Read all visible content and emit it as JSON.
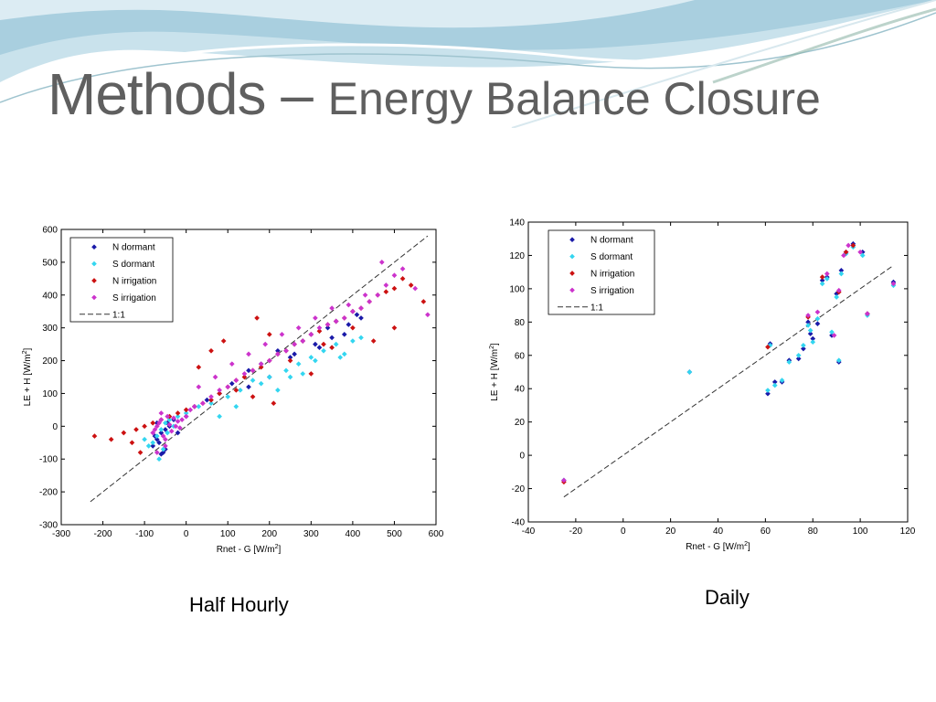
{
  "slide": {
    "title_main": "Methods – ",
    "title_sub": "Energy Balance Closure",
    "captions": [
      "Half Hourly",
      "Daily"
    ]
  },
  "chart_data": [
    {
      "type": "scatter",
      "xlabel": "Rnet - G [W/m",
      "ylabel": "LE + H [W/m",
      "xlim": [
        -300,
        600
      ],
      "ylim": [
        -300,
        600
      ],
      "xticks": [
        -300,
        -200,
        -100,
        0,
        100,
        200,
        300,
        400,
        500,
        600
      ],
      "yticks": [
        -300,
        -200,
        -100,
        0,
        100,
        200,
        300,
        400,
        500,
        600
      ],
      "legend": "top-left",
      "series": [
        {
          "name": "N dormant",
          "color": "#1a1aa8",
          "x": [
            -80,
            -70,
            -60,
            -55,
            -50,
            -45,
            -65,
            -75,
            -40,
            -30,
            -20,
            0,
            20,
            50,
            80,
            110,
            150,
            180,
            220,
            250,
            280,
            300,
            320,
            340,
            360,
            380,
            400,
            410,
            420,
            150,
            200,
            260,
            310,
            350,
            390,
            -60,
            -50,
            -70
          ],
          "y": [
            -60,
            -40,
            -20,
            -80,
            -10,
            10,
            -50,
            -30,
            0,
            20,
            -20,
            30,
            60,
            80,
            100,
            130,
            170,
            190,
            230,
            210,
            260,
            280,
            240,
            300,
            320,
            280,
            350,
            340,
            330,
            120,
            150,
            220,
            250,
            270,
            310,
            -85,
            -70,
            10
          ]
        },
        {
          "name": "S dormant",
          "color": "#33d6f0",
          "x": [
            -80,
            -70,
            -60,
            -55,
            -50,
            -40,
            -30,
            -20,
            0,
            30,
            60,
            100,
            130,
            160,
            200,
            240,
            270,
            300,
            330,
            360,
            380,
            400,
            420,
            180,
            220,
            250,
            350,
            370,
            -100,
            -90,
            -65,
            -45,
            80,
            120,
            280,
            310
          ],
          "y": [
            -50,
            -30,
            -10,
            -70,
            10,
            20,
            0,
            30,
            40,
            60,
            70,
            90,
            110,
            140,
            150,
            170,
            190,
            210,
            230,
            250,
            220,
            260,
            270,
            130,
            110,
            150,
            240,
            210,
            -40,
            -60,
            -100,
            -20,
            30,
            60,
            160,
            200
          ]
        },
        {
          "name": "N irrigation",
          "color": "#cc1111",
          "x": [
            -220,
            -180,
            -150,
            -120,
            -100,
            -80,
            -60,
            -40,
            -20,
            0,
            20,
            40,
            60,
            80,
            100,
            120,
            140,
            160,
            180,
            200,
            220,
            240,
            260,
            280,
            300,
            320,
            340,
            360,
            380,
            400,
            420,
            440,
            460,
            480,
            500,
            520,
            540,
            570,
            30,
            60,
            90,
            120,
            160,
            200,
            250,
            300,
            350,
            400,
            450,
            500,
            -130,
            -110,
            170,
            210,
            330
          ],
          "y": [
            -30,
            -40,
            -20,
            -10,
            0,
            10,
            20,
            30,
            40,
            50,
            60,
            70,
            80,
            100,
            120,
            140,
            150,
            170,
            180,
            200,
            220,
            230,
            250,
            260,
            280,
            290,
            310,
            320,
            330,
            350,
            360,
            380,
            400,
            410,
            420,
            450,
            430,
            380,
            180,
            230,
            260,
            110,
            90,
            280,
            200,
            160,
            240,
            300,
            260,
            300,
            -50,
            -80,
            330,
            70,
            250
          ]
        },
        {
          "name": "S irrigation",
          "color": "#cc33cc",
          "x": [
            -80,
            -75,
            -70,
            -65,
            -60,
            -55,
            -50,
            -45,
            -40,
            -35,
            -30,
            -25,
            -20,
            -15,
            -10,
            0,
            10,
            20,
            40,
            60,
            80,
            100,
            120,
            140,
            160,
            180,
            200,
            220,
            240,
            260,
            280,
            300,
            320,
            340,
            360,
            380,
            400,
            420,
            440,
            460,
            480,
            500,
            520,
            550,
            580,
            30,
            70,
            110,
            150,
            190,
            230,
            270,
            310,
            350,
            390,
            430,
            470,
            -50,
            -60,
            -70
          ],
          "y": [
            -20,
            -10,
            0,
            10,
            20,
            -30,
            -40,
            30,
            5,
            -15,
            25,
            0,
            15,
            -5,
            20,
            30,
            50,
            60,
            70,
            90,
            110,
            120,
            140,
            160,
            170,
            190,
            200,
            220,
            230,
            250,
            260,
            280,
            300,
            310,
            320,
            330,
            350,
            360,
            380,
            400,
            430,
            460,
            480,
            420,
            340,
            120,
            150,
            190,
            220,
            250,
            280,
            300,
            330,
            360,
            370,
            400,
            500,
            -60,
            40,
            -80
          ]
        }
      ],
      "reference_line": {
        "name": "1:1",
        "from": [
          -230,
          -230
        ],
        "to": [
          580,
          580
        ]
      }
    },
    {
      "type": "scatter",
      "xlabel": "Rnet - G [W/m",
      "ylabel": "LE + H [W/m",
      "xlim": [
        -40,
        120
      ],
      "ylim": [
        -40,
        140
      ],
      "xticks": [
        -40,
        -20,
        0,
        20,
        40,
        60,
        80,
        100,
        120
      ],
      "yticks": [
        -40,
        -20,
        0,
        20,
        40,
        60,
        80,
        100,
        120,
        140
      ],
      "legend": "top-left",
      "series": [
        {
          "name": "N dormant",
          "color": "#1a1aa8",
          "x": [
            -25,
            28,
            61,
            62,
            64,
            67,
            70,
            74,
            76,
            78,
            79,
            80,
            82,
            84,
            86,
            88,
            90,
            91,
            92,
            94,
            97,
            101,
            103,
            114
          ],
          "y": [
            -15,
            50,
            37,
            67,
            44,
            44,
            57,
            58,
            64,
            80,
            73,
            70,
            79,
            105,
            107,
            72,
            97,
            56,
            111,
            122,
            127,
            122,
            85,
            104
          ]
        },
        {
          "name": "S dormant",
          "color": "#33d6f0",
          "x": [
            -25,
            28,
            61,
            62,
            64,
            67,
            70,
            74,
            76,
            78,
            79,
            80,
            82,
            84,
            86,
            88,
            90,
            91,
            92,
            94,
            97,
            101,
            103,
            114
          ],
          "y": [
            -15,
            50,
            39,
            66,
            42,
            45,
            56,
            60,
            66,
            78,
            75,
            68,
            82,
            103,
            106,
            74,
            95,
            57,
            109,
            121,
            125,
            120,
            84,
            102
          ]
        },
        {
          "name": "N irrigation",
          "color": "#cc1111",
          "x": [
            -25,
            61,
            78,
            84,
            91,
            94,
            97,
            103
          ],
          "y": [
            -16,
            65,
            83,
            107,
            98,
            122,
            126,
            85
          ]
        },
        {
          "name": "S irrigation",
          "color": "#cc33cc",
          "x": [
            -25,
            78,
            82,
            86,
            89,
            91,
            93,
            95,
            100,
            103,
            114
          ],
          "y": [
            -15,
            84,
            86,
            109,
            72,
            99,
            120,
            126,
            122,
            85,
            103
          ]
        }
      ],
      "reference_line": {
        "name": "1:1",
        "from": [
          -25,
          -25
        ],
        "to": [
          114,
          114
        ]
      }
    }
  ]
}
